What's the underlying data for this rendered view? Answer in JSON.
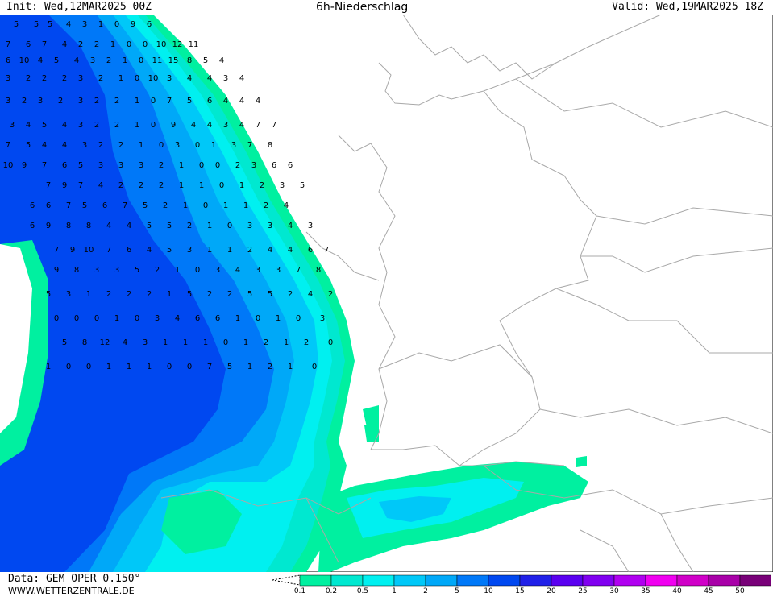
{
  "header": {
    "init": "Init: Wed,12MAR2025 00Z",
    "title": "6h-Niederschlag",
    "valid": "Valid: Wed,19MAR2025 18Z"
  },
  "footer": {
    "data": "Data: GEM OPER 0.150°",
    "site": "WWW.WETTERZENTRALE.DE"
  },
  "legend": {
    "levels": [
      "0.1",
      "0.2",
      "0.5",
      "1",
      "2",
      "5",
      "10",
      "15",
      "20",
      "25",
      "30",
      "35",
      "40",
      "45",
      "50"
    ],
    "colors": [
      "#00f0a0",
      "#00e8d0",
      "#00f0f0",
      "#00c8f8",
      "#00a8f8",
      "#0078f8",
      "#0048f0",
      "#2020e8",
      "#5a00f0",
      "#8000f0",
      "#b000f0",
      "#f000f0",
      "#d000c8",
      "#a800a8",
      "#780078"
    ]
  },
  "precip_labels": [
    "5",
    "5",
    "5",
    "4",
    "3",
    "1",
    "0",
    "9",
    "6",
    "7",
    "6",
    "7",
    "4",
    "2",
    "2",
    "1",
    "0",
    "0",
    "10",
    "12",
    "11",
    "6",
    "10",
    "4",
    "5",
    "4",
    "3",
    "2",
    "1",
    "0",
    "11",
    "15",
    "8",
    "5",
    "4",
    "3",
    "2",
    "2",
    "2",
    "3",
    "2",
    "1",
    "0",
    "10",
    "3",
    "4",
    "4",
    "3",
    "4",
    "3",
    "2",
    "3",
    "2",
    "3",
    "2",
    "2",
    "1",
    "0",
    "7",
    "5",
    "6",
    "4",
    "4",
    "4",
    "3",
    "4",
    "5",
    "4",
    "3",
    "2",
    "2",
    "1",
    "0",
    "9",
    "4",
    "4",
    "3",
    "4",
    "7",
    "7",
    "7",
    "5",
    "4",
    "4",
    "3",
    "2",
    "2",
    "1",
    "0",
    "3",
    "0",
    "1",
    "3",
    "7",
    "8",
    "10",
    "9",
    "7",
    "6",
    "5",
    "3",
    "3",
    "3",
    "2",
    "1",
    "0",
    "0",
    "2",
    "3",
    "6",
    "6",
    "7",
    "9",
    "7",
    "4",
    "2",
    "2",
    "2",
    "1",
    "1",
    "0",
    "1",
    "2",
    "3",
    "5",
    "6",
    "6",
    "7",
    "5",
    "6",
    "7",
    "5",
    "2",
    "1",
    "0",
    "1",
    "1",
    "2",
    "4",
    "6",
    "9",
    "8",
    "8",
    "4",
    "4",
    "5",
    "5",
    "2",
    "1",
    "0",
    "3",
    "3",
    "4",
    "3",
    "7",
    "9",
    "10",
    "7",
    "6",
    "4",
    "5",
    "3",
    "1",
    "1",
    "2",
    "4",
    "4",
    "6",
    "7",
    "9",
    "8",
    "3",
    "3",
    "5",
    "2",
    "1",
    "0",
    "3",
    "4",
    "3",
    "3",
    "7",
    "8",
    "5",
    "3",
    "1",
    "2",
    "2",
    "2",
    "1",
    "5",
    "2",
    "2",
    "5",
    "5",
    "2",
    "4",
    "2",
    "0",
    "0",
    "0",
    "1",
    "0",
    "3",
    "4",
    "6",
    "6",
    "1",
    "0",
    "1",
    "0",
    "3",
    "5",
    "8",
    "12",
    "4",
    "3",
    "1",
    "1",
    "1",
    "0",
    "1",
    "2",
    "1",
    "2",
    "0",
    "1",
    "0",
    "0",
    "1",
    "1",
    "1",
    "0",
    "0",
    "7",
    "5",
    "1",
    "2",
    "1",
    "0"
  ]
}
